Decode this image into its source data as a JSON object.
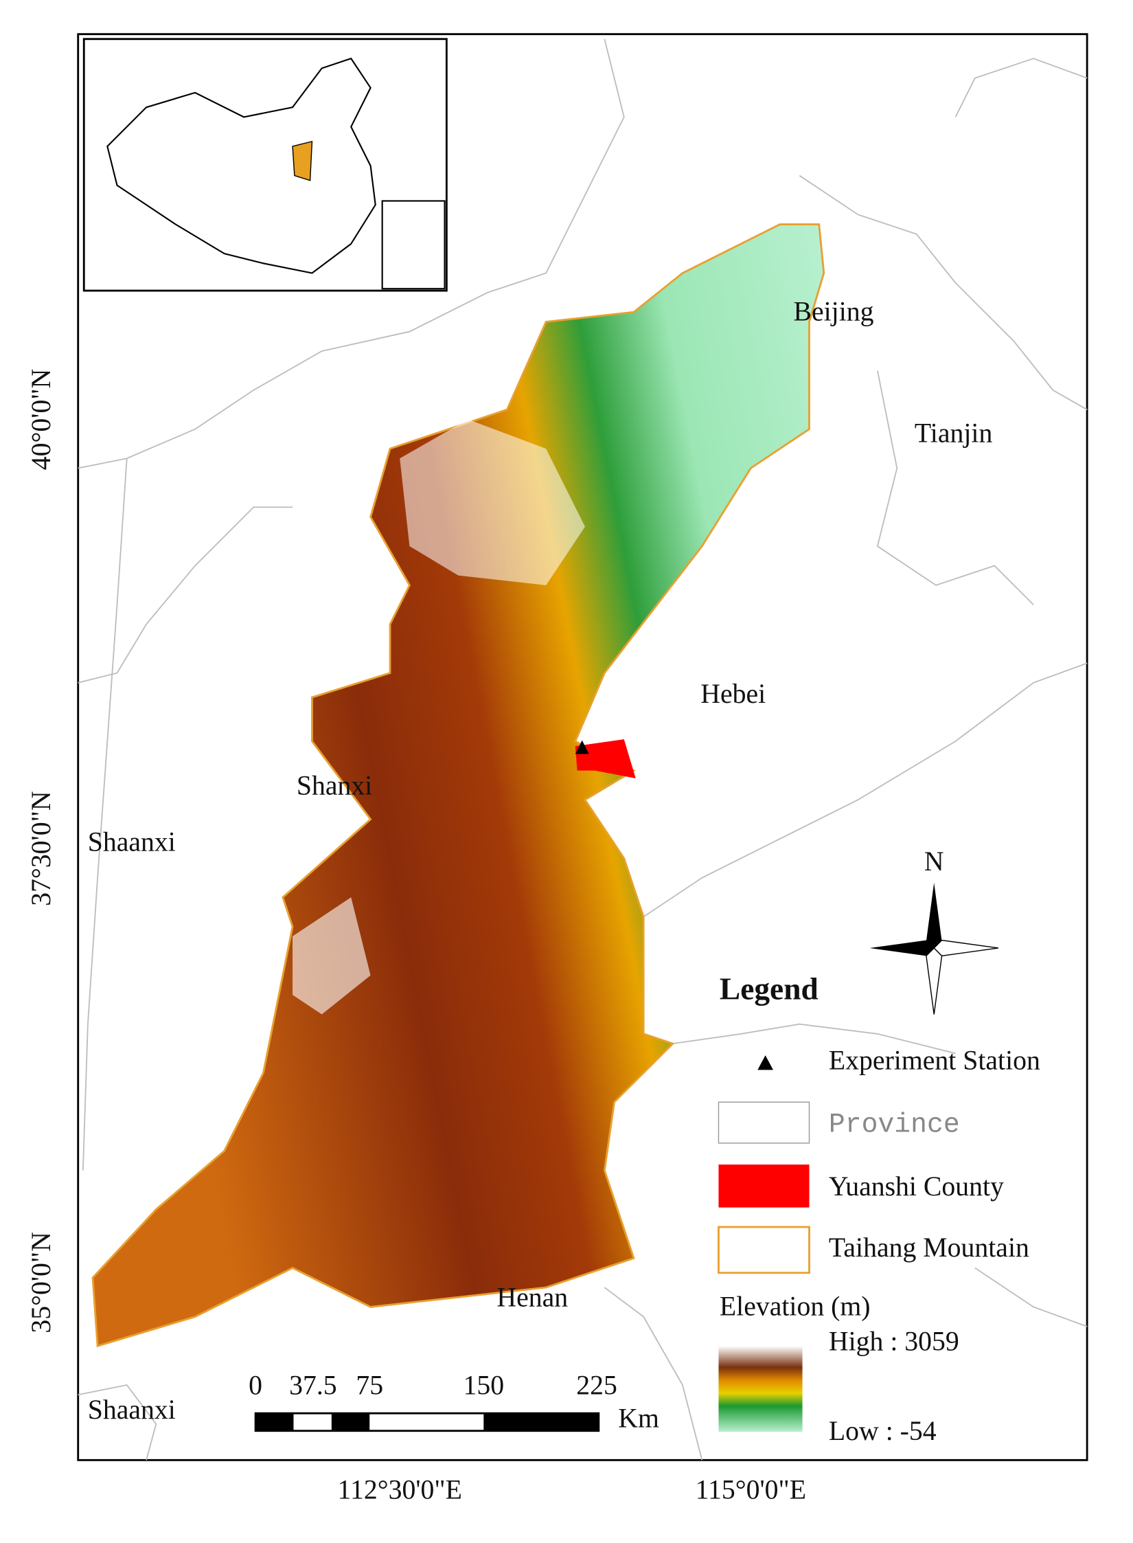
{
  "map": {
    "places": [
      "Beijing",
      "Tianjin",
      "Hebei",
      "Shanxi",
      "Shaanxi",
      "Henan",
      "Shaanxi"
    ],
    "latitude_labels": [
      "40°0'0\"N",
      "37°30'0\"N",
      "35°0'0\"N"
    ],
    "longitude_labels": [
      "112°30'0\"E",
      "115°0'0\"E"
    ],
    "north": "N",
    "legend": {
      "title": "Legend",
      "items": [
        "Experiment Station",
        "Province",
        "Yuanshi County",
        "Taihang Mountain"
      ],
      "elevation_title": "Elevation (m)",
      "high": "High : 3059",
      "low": "Low : -54"
    },
    "scale_bar": {
      "ticks": [
        "0",
        "37.5",
        "75",
        "150",
        "225"
      ],
      "unit": "Km"
    }
  }
}
